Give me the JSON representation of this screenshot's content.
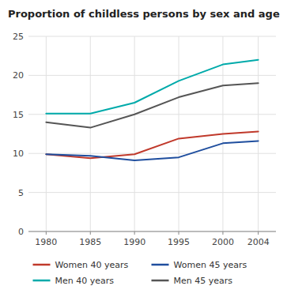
{
  "chart_data": {
    "type": "line",
    "title": "Proportion of childless persons by sex and age",
    "x": [
      1980,
      1985,
      1990,
      1995,
      2000,
      2004
    ],
    "series": [
      {
        "name": "Women 40 years",
        "color": "#c0392b",
        "values": [
          9.9,
          9.4,
          9.9,
          11.9,
          12.5,
          12.8
        ]
      },
      {
        "name": "Women 45 years",
        "color": "#1f4e9e",
        "values": [
          9.9,
          9.7,
          9.1,
          9.5,
          11.3,
          11.6
        ]
      },
      {
        "name": "Men 40 years",
        "color": "#00aaaa",
        "values": [
          15.1,
          15.1,
          16.5,
          19.3,
          21.4,
          22.0
        ]
      },
      {
        "name": "Men 45 years",
        "color": "#555555",
        "values": [
          14.0,
          13.3,
          15.0,
          17.2,
          18.7,
          19.0
        ]
      }
    ],
    "xlim": [
      1978,
      2006
    ],
    "xticks": [
      1980,
      1985,
      1990,
      1995,
      2000,
      2004
    ],
    "ylim": [
      0,
      25
    ],
    "yticks": [
      0,
      5,
      10,
      15,
      20,
      25
    ],
    "grid": true,
    "legend": "bottom"
  }
}
